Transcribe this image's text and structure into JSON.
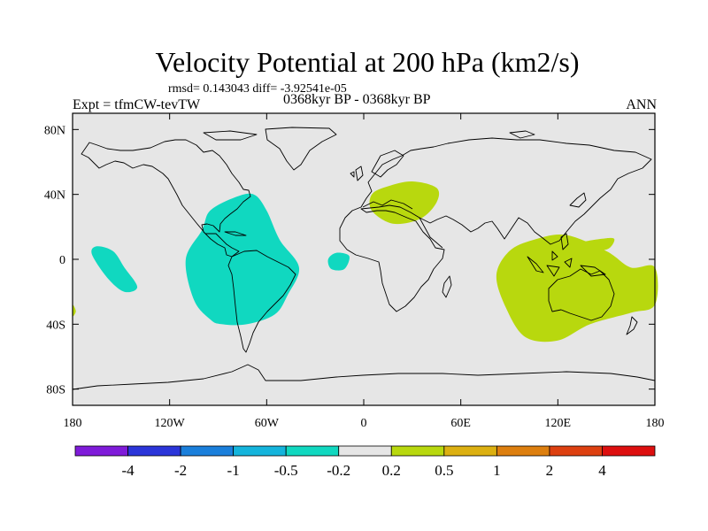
{
  "title": "Velocity Potential at 200 hPa (km2/s)",
  "stats": "rmsd= 0.143043  diff= -3.92541e-05",
  "experiment": "Expt = tfmCW-tevTW",
  "period": "0368kyr BP - 0368kyr BP",
  "season": "ANN",
  "chart_data": {
    "type": "contour-map",
    "projection": "cylindrical-equidistant",
    "lon_range": [
      -180,
      180
    ],
    "lat_range": [
      -90,
      90
    ],
    "background_color": "#e6e6e6",
    "x_ticks": [
      {
        "value": -180,
        "label": "180"
      },
      {
        "value": -120,
        "label": "120W"
      },
      {
        "value": -60,
        "label": "60W"
      },
      {
        "value": 0,
        "label": "0"
      },
      {
        "value": 60,
        "label": "60E"
      },
      {
        "value": 120,
        "label": "120E"
      },
      {
        "value": 180,
        "label": "180"
      }
    ],
    "y_ticks": [
      {
        "value": 80,
        "label": "80N"
      },
      {
        "value": 40,
        "label": "40N"
      },
      {
        "value": 0,
        "label": "0"
      },
      {
        "value": -40,
        "label": "40S"
      },
      {
        "value": -80,
        "label": "80S"
      }
    ],
    "colorbar": {
      "colors": [
        "#7f1bd9",
        "#2b35d9",
        "#1a7fdb",
        "#14b4dc",
        "#10d8c0",
        "#e6e6e6",
        "#b8d80e",
        "#dcb011",
        "#dd7f0f",
        "#dd4010",
        "#dd0f0f"
      ],
      "labels": [
        "-4",
        "-2",
        "-1",
        "-0.5",
        "-0.2",
        "0.2",
        "0.5",
        "1",
        "2",
        "4"
      ]
    },
    "regions": [
      {
        "name": "tropical-atlantic-negative",
        "level": "-0.5 to -0.2",
        "color": "#10d8c0",
        "points": [
          [
            -95,
            -37
          ],
          [
            -105,
            -25
          ],
          [
            -110,
            0
          ],
          [
            -100,
            18
          ],
          [
            -95,
            30
          ],
          [
            -80,
            38
          ],
          [
            -68,
            40
          ],
          [
            -60,
            30
          ],
          [
            -52,
            12
          ],
          [
            -40,
            -5
          ],
          [
            -47,
            -22
          ],
          [
            -55,
            -34
          ],
          [
            -72,
            -40
          ],
          [
            -88,
            -40
          ]
        ]
      },
      {
        "name": "central-pacific-negative",
        "level": "-0.5 to -0.2",
        "color": "#10d8c0",
        "points": [
          [
            -168,
            3
          ],
          [
            -165,
            8
          ],
          [
            -155,
            5
          ],
          [
            -148,
            -5
          ],
          [
            -140,
            -17
          ],
          [
            -148,
            -20
          ],
          [
            -158,
            -12
          ]
        ]
      },
      {
        "name": "eastern-atlantic-negative",
        "level": "-0.5 to -0.2",
        "color": "#10d8c0",
        "points": [
          [
            -22,
            0
          ],
          [
            -17,
            4
          ],
          [
            -9,
            2
          ],
          [
            -12,
            -6
          ],
          [
            -20,
            -6
          ]
        ]
      },
      {
        "name": "mediterranean-positive",
        "level": "0.2 to 0.5",
        "color": "#b8d80e",
        "points": [
          [
            5,
            30
          ],
          [
            5,
            40
          ],
          [
            15,
            45
          ],
          [
            30,
            48
          ],
          [
            45,
            44
          ],
          [
            45,
            35
          ],
          [
            35,
            25
          ],
          [
            18,
            22
          ]
        ]
      },
      {
        "name": "indo-pacific-positive",
        "level": "0.2 to 0.5",
        "color": "#b8d80e",
        "points": [
          [
            88,
            -30
          ],
          [
            82,
            -10
          ],
          [
            90,
            5
          ],
          [
            105,
            12
          ],
          [
            125,
            15
          ],
          [
            150,
            5
          ],
          [
            165,
            -5
          ],
          [
            180,
            -5
          ],
          [
            180,
            -28
          ],
          [
            165,
            -33
          ],
          [
            140,
            -40
          ],
          [
            120,
            -50
          ],
          [
            100,
            -48
          ]
        ]
      },
      {
        "name": "western-pacific-positive",
        "level": "0.2 to 0.5",
        "color": "#b8d80e",
        "points": [
          [
            133,
            10
          ],
          [
            150,
            13
          ],
          [
            155,
            12
          ],
          [
            150,
            6
          ],
          [
            135,
            6
          ]
        ]
      },
      {
        "name": "dateline-edge-positive",
        "level": "0.2 to 0.5",
        "color": "#b8d80e",
        "points": [
          [
            -180,
            -28
          ],
          [
            -178,
            -32
          ],
          [
            -180,
            -35
          ]
        ]
      }
    ]
  }
}
